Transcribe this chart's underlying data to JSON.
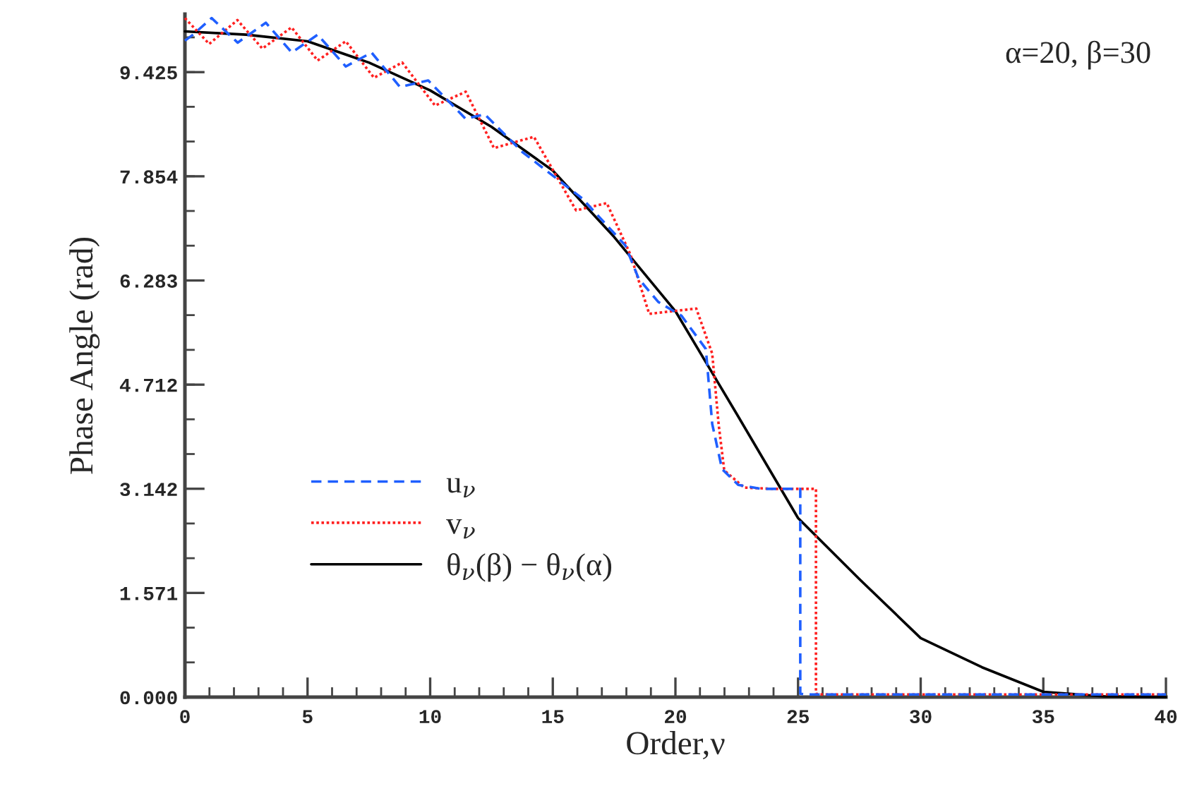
{
  "chart_data": {
    "type": "line",
    "xlabel": "Order,ν",
    "ylabel": "Phase Angle (rad)",
    "annotations": [
      "α=20, β=30"
    ],
    "xlim": [
      0,
      40
    ],
    "xticks": [
      0,
      5,
      10,
      15,
      20,
      25,
      30,
      35,
      40
    ],
    "ylim": [
      0,
      10.3
    ],
    "yticks": [
      {
        "value": 0,
        "label": "0.000"
      },
      1.571,
      3.142,
      4.712,
      6.283,
      7.854,
      9.425
    ],
    "grid": false,
    "legend": "left",
    "marker": "none",
    "series": [
      {
        "name": "u$_{ν}$",
        "color": "#1f5fff",
        "line_style": "dashed",
        "x": [
          0,
          0.33,
          1.09,
          2.15,
          3.3,
          4.36,
          5.41,
          6.56,
          7.61,
          8.77,
          9.92,
          11.45,
          12.22,
          13.76,
          16.2,
          17.96,
          18.5,
          19.3,
          20.25,
          21.24,
          21.5,
          21.9,
          22.56,
          23.5,
          25.09,
          25.09,
          25.3,
          30,
          35,
          40
        ],
        "values": [
          9.9,
          9.99,
          10.24,
          9.87,
          10.17,
          9.72,
          9.99,
          9.51,
          9.72,
          9.2,
          9.3,
          8.72,
          8.79,
          8.22,
          7.52,
          6.81,
          6.31,
          5.96,
          5.75,
          5.25,
          4.12,
          3.44,
          3.2,
          3.14,
          3.14,
          0.05,
          0.04,
          0.04,
          0.04,
          0.04
        ]
      },
      {
        "name": "v$_{ν}$",
        "color": "#ff2020",
        "line_style": "dotted",
        "x": [
          0,
          0.99,
          2.14,
          3.16,
          4.35,
          5.41,
          6.56,
          7.71,
          8.86,
          10.2,
          11.45,
          12.6,
          14.23,
          15.95,
          17.2,
          18.17,
          18.93,
          20.85,
          21.5,
          21.76,
          21.99,
          22.8,
          24,
          25.73,
          25.73,
          26,
          30,
          35,
          40
        ],
        "values": [
          10.24,
          9.85,
          10.21,
          9.78,
          10.1,
          9.6,
          9.89,
          9.34,
          9.57,
          8.92,
          9.13,
          8.28,
          8.45,
          7.34,
          7.45,
          6.67,
          5.78,
          5.86,
          5.18,
          4.12,
          3.42,
          3.16,
          3.14,
          3.14,
          0.05,
          0.04,
          0.04,
          0.04,
          0.04
        ]
      },
      {
        "name": "θ$_{ν}$(β) − θ$_{ν}$(α)",
        "color": "#000000",
        "line_style": "solid",
        "x": [
          0,
          2.5,
          5,
          7.5,
          10,
          12.5,
          15,
          17.5,
          20,
          22.5,
          25,
          27.5,
          30,
          32.5,
          35,
          37.5,
          40
        ],
        "values": [
          10.04,
          9.99,
          9.89,
          9.57,
          9.15,
          8.6,
          7.94,
          6.94,
          5.82,
          4.27,
          2.7,
          1.78,
          0.89,
          0.45,
          0.08,
          0.01,
          0
        ]
      }
    ]
  }
}
